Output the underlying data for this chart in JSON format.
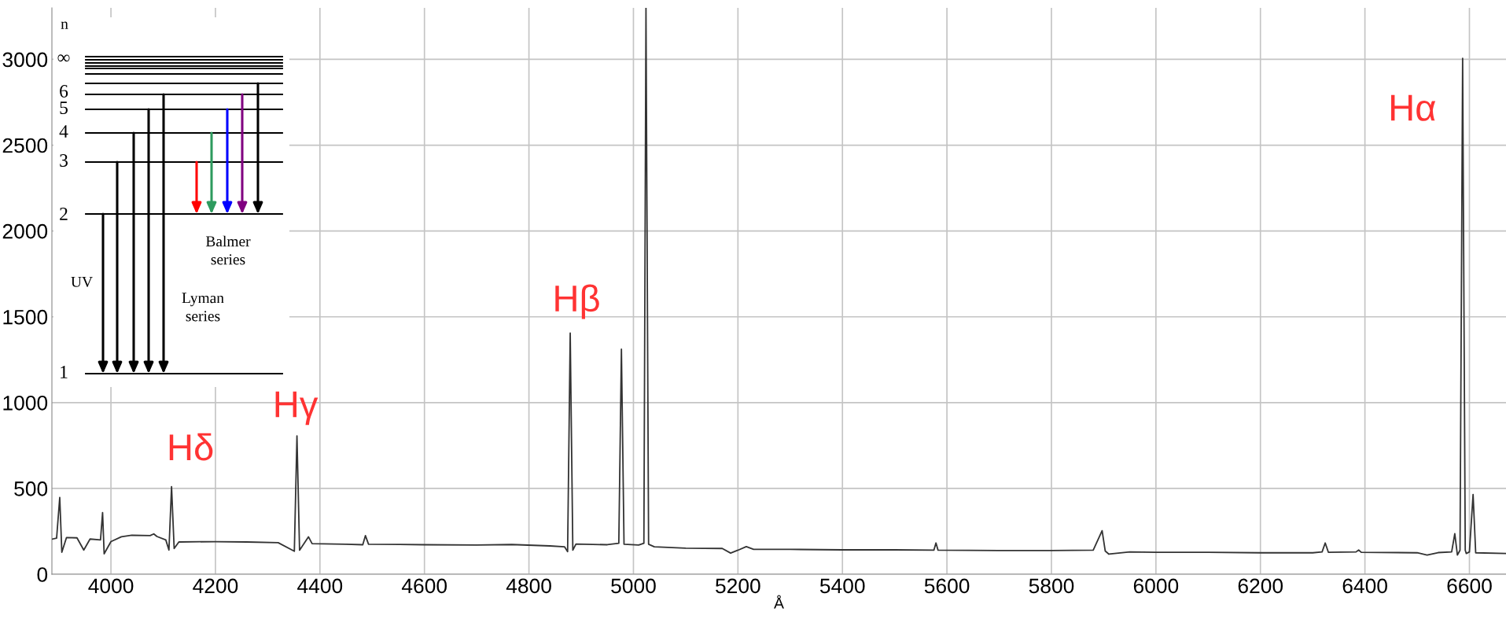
{
  "chart_data": [
    {
      "type": "line",
      "xlabel": "Å",
      "xlim": [
        3887,
        6670
      ],
      "ylim": [
        0,
        3300
      ],
      "xticks": [
        4000,
        4200,
        4400,
        4600,
        4800,
        5000,
        5200,
        5400,
        5600,
        5800,
        6000,
        6200,
        6400,
        6600
      ],
      "yticks": [
        0,
        500,
        1000,
        1500,
        2000,
        2500,
        3000
      ],
      "grid": true,
      "legend": false,
      "series": [
        {
          "color": "#333333",
          "x": [
            3888,
            3896,
            3902,
            3906,
            3915,
            3935,
            3948,
            3960,
            3980,
            3984,
            3987,
            4000,
            4020,
            4040,
            4075,
            4082,
            4088,
            4105,
            4111,
            4116,
            4121,
            4130,
            4200,
            4260,
            4320,
            4351,
            4356,
            4361,
            4378,
            4385,
            4450,
            4482,
            4487,
            4493,
            4600,
            4700,
            4767,
            4840,
            4868,
            4874,
            4879,
            4884,
            4890,
            4950,
            4972,
            4977,
            4982,
            5010,
            5020,
            5024,
            5029,
            5040,
            5100,
            5170,
            5186,
            5200,
            5216,
            5230,
            5300,
            5400,
            5500,
            5575,
            5579,
            5583,
            5700,
            5800,
            5880,
            5897,
            5903,
            5910,
            5950,
            6000,
            6100,
            6200,
            6300,
            6318,
            6324,
            6330,
            6383,
            6388,
            6393,
            6500,
            6519,
            6540,
            6566,
            6572,
            6577,
            6582,
            6587,
            6592,
            6594,
            6600,
            6607,
            6612,
            6670
          ],
          "values": [
            205,
            210,
            447,
            128,
            214,
            212,
            141,
            205,
            200,
            359,
            119,
            190,
            218,
            227,
            225,
            235,
            220,
            200,
            141,
            510,
            150,
            188,
            190,
            188,
            184,
            134,
            806,
            140,
            218,
            178,
            175,
            172,
            225,
            175,
            172,
            170,
            173,
            165,
            160,
            132,
            1405,
            140,
            176,
            172,
            180,
            1311,
            175,
            170,
            180,
            3300,
            175,
            160,
            152,
            150,
            123,
            140,
            161,
            145,
            145,
            142,
            142,
            140,
            182,
            140,
            138,
            138,
            140,
            254,
            135,
            117,
            130,
            128,
            128,
            125,
            125,
            130,
            182,
            128,
            130,
            141,
            128,
            125,
            112,
            126,
            130,
            236,
            112,
            140,
            3006,
            140,
            121,
            130,
            465,
            125,
            121
          ]
        }
      ],
      "annotations": [
        {
          "text": "Hδ",
          "x": 4116,
          "y": 510
        },
        {
          "text": "Hγ",
          "x": 4356,
          "y": 806
        },
        {
          "text": "Hβ",
          "x": 4879,
          "y": 1405
        },
        {
          "text": "Hα",
          "x": 6587,
          "y": 3006
        },
        "n",
        "∞",
        "6",
        "5",
        "4",
        "3",
        "2",
        "1",
        "UV",
        "Balmer\nseries",
        "Lyman\nseries"
      ]
    }
  ]
}
